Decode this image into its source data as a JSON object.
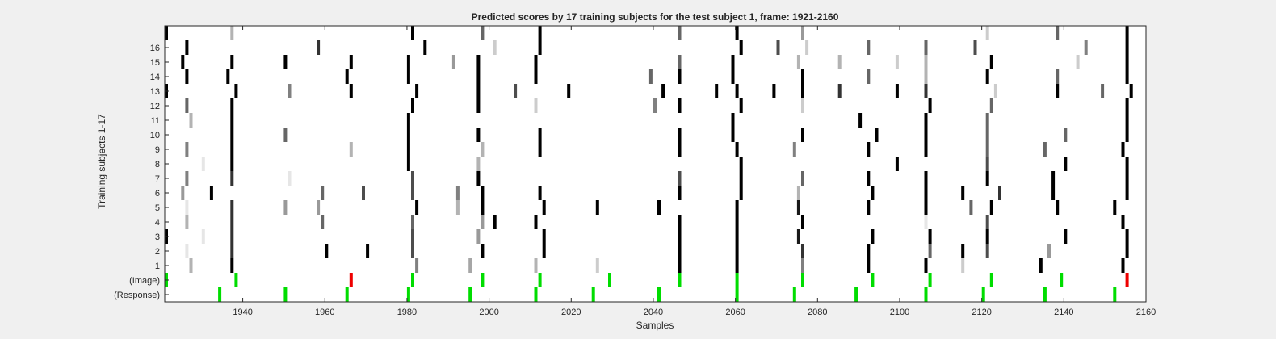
{
  "chart_data": {
    "type": "heatmap",
    "title": "Predicted scores by 17 training subjects for the test subject 1, frame: 1921-2160",
    "xlabel": "Samples",
    "ylabel": "Training subjects 1-17",
    "xlim": [
      1921,
      2160
    ],
    "xticks": [
      1940,
      1960,
      1980,
      2000,
      2020,
      2040,
      2060,
      2080,
      2100,
      2120,
      2140,
      2160
    ],
    "rows": [
      "(Response)",
      "(Image)",
      "1",
      "2",
      "3",
      "4",
      "5",
      "6",
      "7",
      "8",
      "9",
      "10",
      "11",
      "12",
      "13",
      "14",
      "15",
      "16",
      ""
    ],
    "ytick_labels": [
      "(Response)",
      "(Image)",
      "1",
      "2",
      "3",
      "4",
      "5",
      "6",
      "7",
      "8",
      "9",
      "10",
      "11",
      "12",
      "13",
      "14",
      "15",
      "16"
    ],
    "colors": {
      "green": "#00dd00",
      "red": "#ee0000",
      "background": "#ffffff"
    },
    "note_values": "Each mark: [x sample, row index from bottom (0=(Response),1=(Image),2..18=subjects), intensity 0=white..1=black]",
    "marks": {
      "response": [
        1934,
        1950,
        1965,
        1980,
        1995,
        2011,
        2025,
        2041,
        2060,
        2074,
        2089,
        2106,
        2120,
        2135,
        2152
      ],
      "image_green": [
        1921,
        1938,
        1981,
        1998,
        2012,
        2029,
        2046,
        2060,
        2076,
        2093,
        2107,
        2122,
        2139
      ],
      "image_red": [
        1966,
        2155
      ],
      "subjects": [
        [
          1927,
          2,
          0.3
        ],
        [
          1937,
          2,
          1
        ],
        [
          1982,
          2,
          0.5
        ],
        [
          1995,
          2,
          0.35
        ],
        [
          2011,
          2,
          0.3
        ],
        [
          2026,
          2,
          0.2
        ],
        [
          2046,
          2,
          1
        ],
        [
          2060,
          2,
          1
        ],
        [
          2076,
          2,
          0.5
        ],
        [
          2092,
          2,
          1
        ],
        [
          2106,
          2,
          1
        ],
        [
          2115,
          2,
          0.2
        ],
        [
          2134,
          2,
          1
        ],
        [
          2154,
          2,
          1
        ],
        [
          1926,
          3,
          0.1
        ],
        [
          1937,
          3,
          0.8
        ],
        [
          1960,
          3,
          1
        ],
        [
          1970,
          3,
          1
        ],
        [
          1981,
          3,
          0.7
        ],
        [
          1998,
          3,
          1
        ],
        [
          2013,
          3,
          1
        ],
        [
          2046,
          3,
          1
        ],
        [
          2060,
          3,
          1
        ],
        [
          2076,
          3,
          0.8
        ],
        [
          2092,
          3,
          1
        ],
        [
          2107,
          3,
          0.6
        ],
        [
          2115,
          3,
          1
        ],
        [
          2121,
          3,
          0.7
        ],
        [
          2136,
          3,
          0.4
        ],
        [
          2155,
          3,
          1
        ],
        [
          1921,
          4,
          1
        ],
        [
          1930,
          4,
          0.1
        ],
        [
          1937,
          4,
          0.8
        ],
        [
          1981,
          4,
          0.7
        ],
        [
          1997,
          4,
          0.4
        ],
        [
          2013,
          4,
          1
        ],
        [
          2046,
          4,
          1
        ],
        [
          2060,
          4,
          1
        ],
        [
          2075,
          4,
          0.9
        ],
        [
          2093,
          4,
          1
        ],
        [
          2107,
          4,
          1
        ],
        [
          2121,
          4,
          1
        ],
        [
          2140,
          4,
          1
        ],
        [
          2155,
          4,
          1
        ],
        [
          1926,
          5,
          0.3
        ],
        [
          1937,
          5,
          0.8
        ],
        [
          1959,
          5,
          0.6
        ],
        [
          1981,
          5,
          0.6
        ],
        [
          1998,
          5,
          0.4
        ],
        [
          2001,
          5,
          1
        ],
        [
          2011,
          5,
          1
        ],
        [
          2046,
          5,
          1
        ],
        [
          2060,
          5,
          1
        ],
        [
          2076,
          5,
          1
        ],
        [
          2106,
          5,
          0.1
        ],
        [
          2121,
          5,
          0.7
        ],
        [
          2154,
          5,
          1
        ],
        [
          1926,
          6,
          0.1
        ],
        [
          1937,
          6,
          0.8
        ],
        [
          1950,
          6,
          0.4
        ],
        [
          1958,
          6,
          0.4
        ],
        [
          1982,
          6,
          1
        ],
        [
          1992,
          6,
          0.3
        ],
        [
          1998,
          6,
          1
        ],
        [
          2013,
          6,
          1
        ],
        [
          2026,
          6,
          1
        ],
        [
          2041,
          6,
          1
        ],
        [
          2060,
          6,
          1
        ],
        [
          2075,
          6,
          0.9
        ],
        [
          2092,
          6,
          1
        ],
        [
          2106,
          6,
          1
        ],
        [
          2117,
          6,
          0.6
        ],
        [
          2122,
          6,
          1
        ],
        [
          2138,
          6,
          1
        ],
        [
          2152,
          6,
          1
        ],
        [
          1925,
          7,
          0.4
        ],
        [
          1932,
          7,
          1
        ],
        [
          1959,
          7,
          0.6
        ],
        [
          1969,
          7,
          0.7
        ],
        [
          1981,
          7,
          0.7
        ],
        [
          1992,
          7,
          0.5
        ],
        [
          1998,
          7,
          1
        ],
        [
          2012,
          7,
          1
        ],
        [
          2046,
          7,
          1
        ],
        [
          2061,
          7,
          1
        ],
        [
          2075,
          7,
          0.3
        ],
        [
          2093,
          7,
          1
        ],
        [
          2106,
          7,
          1
        ],
        [
          2115,
          7,
          1
        ],
        [
          2124,
          7,
          0.8
        ],
        [
          2137,
          7,
          1
        ],
        [
          2155,
          7,
          1
        ],
        [
          1926,
          8,
          0.5
        ],
        [
          1937,
          8,
          0.8
        ],
        [
          1951,
          8,
          0.1
        ],
        [
          1981,
          8,
          0.7
        ],
        [
          1997,
          8,
          1
        ],
        [
          2046,
          8,
          0.7
        ],
        [
          2061,
          8,
          1
        ],
        [
          2076,
          8,
          0.6
        ],
        [
          2092,
          8,
          1
        ],
        [
          2106,
          8,
          1
        ],
        [
          2121,
          8,
          1
        ],
        [
          2137,
          8,
          1
        ],
        [
          2155,
          8,
          1
        ],
        [
          1930,
          9,
          0.1
        ],
        [
          1937,
          9,
          1
        ],
        [
          1980,
          9,
          1
        ],
        [
          1997,
          9,
          0.3
        ],
        [
          2061,
          9,
          1
        ],
        [
          2099,
          9,
          1
        ],
        [
          2121,
          9,
          0.7
        ],
        [
          2140,
          9,
          1
        ],
        [
          2155,
          9,
          1
        ],
        [
          1926,
          10,
          0.5
        ],
        [
          1937,
          10,
          1
        ],
        [
          1966,
          10,
          0.3
        ],
        [
          1980,
          10,
          1
        ],
        [
          1998,
          10,
          0.3
        ],
        [
          2012,
          10,
          1
        ],
        [
          2046,
          10,
          1
        ],
        [
          2060,
          10,
          1
        ],
        [
          2074,
          10,
          0.5
        ],
        [
          2092,
          10,
          1
        ],
        [
          2106,
          10,
          1
        ],
        [
          2121,
          10,
          0.6
        ],
        [
          2135,
          10,
          0.6
        ],
        [
          2154,
          10,
          1
        ],
        [
          1937,
          11,
          1
        ],
        [
          1950,
          11,
          0.6
        ],
        [
          1980,
          11,
          1
        ],
        [
          1997,
          11,
          1
        ],
        [
          2012,
          11,
          1
        ],
        [
          2046,
          11,
          1
        ],
        [
          2059,
          11,
          1
        ],
        [
          2076,
          11,
          1
        ],
        [
          2094,
          11,
          1
        ],
        [
          2106,
          11,
          1
        ],
        [
          2121,
          11,
          0.6
        ],
        [
          2140,
          11,
          0.6
        ],
        [
          2155,
          11,
          1
        ],
        [
          1927,
          12,
          0.3
        ],
        [
          1937,
          12,
          1
        ],
        [
          1980,
          12,
          1
        ],
        [
          2059,
          12,
          1
        ],
        [
          2090,
          12,
          1
        ],
        [
          2106,
          12,
          1
        ],
        [
          2121,
          12,
          0.6
        ],
        [
          2155,
          12,
          1
        ],
        [
          1926,
          13,
          0.6
        ],
        [
          1937,
          13,
          1
        ],
        [
          1981,
          13,
          1
        ],
        [
          1997,
          13,
          1
        ],
        [
          2011,
          13,
          0.2
        ],
        [
          2040,
          13,
          0.5
        ],
        [
          2046,
          13,
          1
        ],
        [
          2061,
          13,
          1
        ],
        [
          2076,
          13,
          0.2
        ],
        [
          2107,
          13,
          1
        ],
        [
          2122,
          13,
          0.6
        ],
        [
          2155,
          13,
          1
        ],
        [
          1921,
          14,
          1
        ],
        [
          1938,
          14,
          1
        ],
        [
          1951,
          14,
          0.5
        ],
        [
          1966,
          14,
          1
        ],
        [
          1982,
          14,
          1
        ],
        [
          1997,
          14,
          1
        ],
        [
          2006,
          14,
          0.7
        ],
        [
          2019,
          14,
          1
        ],
        [
          2042,
          14,
          1
        ],
        [
          2055,
          14,
          1
        ],
        [
          2060,
          14,
          1
        ],
        [
          2069,
          14,
          1
        ],
        [
          2076,
          14,
          1
        ],
        [
          2085,
          14,
          0.8
        ],
        [
          2099,
          14,
          1
        ],
        [
          2106,
          14,
          0.8
        ],
        [
          2123,
          14,
          0.2
        ],
        [
          2138,
          14,
          1
        ],
        [
          2149,
          14,
          0.6
        ],
        [
          2156,
          14,
          1
        ],
        [
          1926,
          15,
          1
        ],
        [
          1936,
          15,
          1
        ],
        [
          1965,
          15,
          1
        ],
        [
          1980,
          15,
          1
        ],
        [
          1997,
          15,
          1
        ],
        [
          2011,
          15,
          1
        ],
        [
          2039,
          15,
          0.6
        ],
        [
          2046,
          15,
          1
        ],
        [
          2059,
          15,
          1
        ],
        [
          2076,
          15,
          1
        ],
        [
          2092,
          15,
          0.6
        ],
        [
          2106,
          15,
          0.3
        ],
        [
          2121,
          15,
          1
        ],
        [
          2138,
          15,
          0.6
        ],
        [
          2155,
          15,
          1
        ],
        [
          1925,
          16,
          1
        ],
        [
          1937,
          16,
          1
        ],
        [
          1950,
          16,
          1
        ],
        [
          1966,
          16,
          1
        ],
        [
          1980,
          16,
          1
        ],
        [
          1991,
          16,
          0.4
        ],
        [
          1997,
          16,
          1
        ],
        [
          2011,
          16,
          1
        ],
        [
          2046,
          16,
          0.6
        ],
        [
          2059,
          16,
          1
        ],
        [
          2075,
          16,
          0.3
        ],
        [
          2085,
          16,
          0.3
        ],
        [
          2099,
          16,
          0.2
        ],
        [
          2106,
          16,
          0.3
        ],
        [
          2122,
          16,
          1
        ],
        [
          2143,
          16,
          0.2
        ],
        [
          2155,
          16,
          1
        ],
        [
          1926,
          17,
          1
        ],
        [
          1958,
          17,
          0.8
        ],
        [
          1984,
          17,
          1
        ],
        [
          2001,
          17,
          0.2
        ],
        [
          2012,
          17,
          1
        ],
        [
          2061,
          17,
          1
        ],
        [
          2070,
          17,
          0.7
        ],
        [
          2077,
          17,
          0.2
        ],
        [
          2092,
          17,
          0.6
        ],
        [
          2106,
          17,
          0.6
        ],
        [
          2118,
          17,
          0.7
        ],
        [
          2145,
          17,
          0.5
        ],
        [
          2155,
          17,
          1
        ],
        [
          1921,
          18,
          1
        ],
        [
          1937,
          18,
          0.3
        ],
        [
          1981,
          18,
          1
        ],
        [
          1998,
          18,
          0.6
        ],
        [
          2012,
          18,
          1
        ],
        [
          2046,
          18,
          0.6
        ],
        [
          2060,
          18,
          1
        ],
        [
          2076,
          18,
          0.4
        ],
        [
          2121,
          18,
          0.2
        ],
        [
          2138,
          18,
          0.6
        ],
        [
          2155,
          18,
          1
        ]
      ]
    }
  }
}
